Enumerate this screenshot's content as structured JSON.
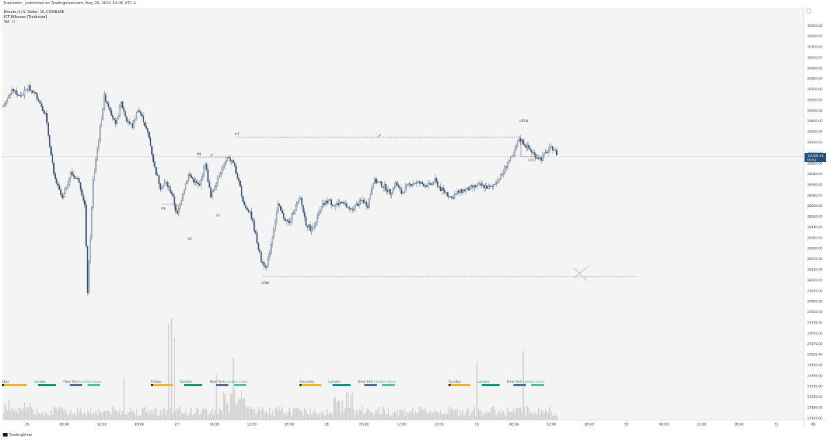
{
  "header": {
    "publish_line": "Tradinstor_ published on TradingView.com, May 29, 2022 14:05 UTC-4",
    "symbol_line": "Bitcoin / U.S. Dollar, 15, COINBASE",
    "indicator_line": "ICT Killzones [Tradinstor]",
    "vol_label": "Vol",
    "vol_value": "29"
  },
  "footer": {
    "brand": "TradingView"
  },
  "price_axis": {
    "labels": [
      "30300.00",
      "30200.00",
      "30100.00",
      "30000.00",
      "29900.00",
      "29800.00",
      "29700.00",
      "29600.00",
      "29500.00",
      "29400.00",
      "29300.00",
      "29100.00",
      "29000.00",
      "28920.00",
      "28840.00",
      "28760.00",
      "28680.00",
      "28600.00",
      "28520.00",
      "28440.00",
      "28360.00",
      "28280.00",
      "28205.00",
      "28130.00",
      "28055.00",
      "27975.00",
      "27895.00",
      "27815.00",
      "27735.00",
      "27655.00",
      "27575.00",
      "27505.00",
      "27435.00",
      "27365.00",
      "27295.00",
      "27230.00",
      "27166.00",
      "27102.00"
    ],
    "current_price": "29205.55",
    "countdown": "09:04"
  },
  "time_axis": {
    "labels": [
      "26",
      "06:00",
      "12:00",
      "18:00",
      "27",
      "06:00",
      "12:00",
      "18:00",
      "28",
      "06:00",
      "12:00",
      "18:00",
      "29",
      "06:00",
      "12:00",
      "18:00",
      "30",
      "06:00",
      "12:00",
      "18:00",
      "31",
      "06:"
    ]
  },
  "annotations": [
    "AR",
    "PS",
    "SC",
    "ST",
    "UT",
    "SOW",
    "UTAD",
    "LPSY"
  ],
  "sessions": [
    "iday",
    "London",
    "New York",
    "London close",
    "Friday",
    "London",
    "New York",
    "London close",
    "Saturday",
    "London",
    "New York",
    "London close",
    "Sunday",
    "London",
    "New York",
    "London close"
  ],
  "colors": {
    "bar": "#2f4b70",
    "asia": "#f0b429",
    "london": "#11917e",
    "newyork": "#4a6e96",
    "londonclose": "#4fb8a8",
    "price_tag": "#1f4e79"
  },
  "chart_data": {
    "type": "candlestick",
    "symbol": "Bitcoin / U.S. Dollar, 15, COINBASE",
    "price_range": [
      27102,
      30300
    ],
    "approx_close_path": [
      [
        0,
        29620
      ],
      [
        3,
        29760
      ],
      [
        6,
        29700
      ],
      [
        9,
        29780
      ],
      [
        12,
        29700
      ],
      [
        15,
        29550
      ],
      [
        18,
        29040
      ],
      [
        21,
        28850
      ],
      [
        24,
        29060
      ],
      [
        27,
        29000
      ],
      [
        29,
        28800
      ],
      [
        30,
        28100
      ],
      [
        32,
        29000
      ],
      [
        34,
        29350
      ],
      [
        36,
        29700
      ],
      [
        38,
        29600
      ],
      [
        40,
        29450
      ],
      [
        42,
        29650
      ],
      [
        44,
        29500
      ],
      [
        46,
        29450
      ],
      [
        48,
        29600
      ],
      [
        50,
        29500
      ],
      [
        52,
        29350
      ],
      [
        54,
        29100
      ],
      [
        56,
        28950
      ],
      [
        58,
        28980
      ],
      [
        60,
        28900
      ],
      [
        62,
        28720
      ],
      [
        64,
        28900
      ],
      [
        66,
        29050
      ],
      [
        68,
        29000
      ],
      [
        70,
        28950
      ],
      [
        72,
        29150
      ],
      [
        74,
        28860
      ],
      [
        76,
        29000
      ],
      [
        78,
        29100
      ],
      [
        80,
        29180
      ],
      [
        82,
        29150
      ],
      [
        84,
        28980
      ],
      [
        86,
        28800
      ],
      [
        88,
        28750
      ],
      [
        90,
        28560
      ],
      [
        92,
        28350
      ],
      [
        94,
        28300
      ],
      [
        96,
        28550
      ],
      [
        98,
        28800
      ],
      [
        100,
        28700
      ],
      [
        102,
        28650
      ],
      [
        104,
        28780
      ],
      [
        106,
        28850
      ],
      [
        108,
        28650
      ],
      [
        110,
        28600
      ],
      [
        112,
        28700
      ],
      [
        114,
        28800
      ],
      [
        116,
        28840
      ],
      [
        118,
        28800
      ],
      [
        120,
        28820
      ],
      [
        122,
        28800
      ],
      [
        124,
        28760
      ],
      [
        126,
        28800
      ],
      [
        128,
        28840
      ],
      [
        130,
        28800
      ],
      [
        132,
        29000
      ],
      [
        134,
        28980
      ],
      [
        136,
        28950
      ],
      [
        138,
        28900
      ],
      [
        140,
        28980
      ],
      [
        142,
        28900
      ],
      [
        144,
        28950
      ],
      [
        146,
        28980
      ],
      [
        148,
        28980
      ],
      [
        150,
        28970
      ],
      [
        152,
        28960
      ],
      [
        154,
        29000
      ],
      [
        156,
        28930
      ],
      [
        158,
        28900
      ],
      [
        160,
        28860
      ],
      [
        162,
        28900
      ],
      [
        164,
        28920
      ],
      [
        166,
        28930
      ],
      [
        168,
        28950
      ],
      [
        170,
        28960
      ],
      [
        172,
        28950
      ],
      [
        174,
        28940
      ],
      [
        176,
        29000
      ],
      [
        178,
        29050
      ],
      [
        180,
        29150
      ],
      [
        182,
        29200
      ],
      [
        184,
        29350
      ],
      [
        186,
        29300
      ],
      [
        188,
        29250
      ],
      [
        190,
        29200
      ],
      [
        192,
        29180
      ],
      [
        194,
        29240
      ],
      [
        196,
        29270
      ],
      [
        198,
        29205
      ]
    ],
    "levels": [
      {
        "name": "SOW",
        "price": 28240
      },
      {
        "name": "UT",
        "price": 29340
      },
      {
        "name": "AR",
        "price": 29180
      }
    ]
  }
}
